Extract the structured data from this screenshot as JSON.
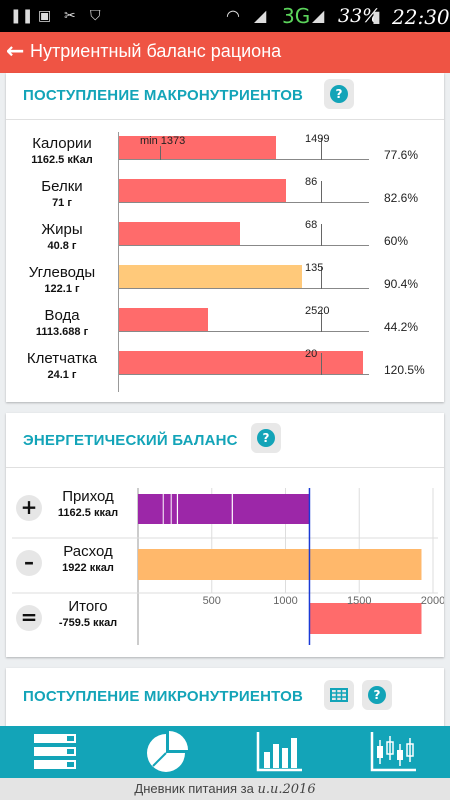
{
  "status_bar": {
    "network": "3G",
    "battery": "33%",
    "time": "22:30"
  },
  "app_bar": {
    "title": "Нутриентный баланс рациона"
  },
  "macro": {
    "title": "ПОСТУПЛЕНИЕ МАКРОНУТРИЕНТОВ",
    "help": "?",
    "rows": [
      {
        "name": "Калории",
        "value": "1162.5 кКал",
        "min_label": "min 1373",
        "norm": "1499",
        "percent": "77.6%",
        "fill": 0.776,
        "color": "#ff6b6b"
      },
      {
        "name": "Белки",
        "value": "71 г",
        "norm": "86",
        "percent": "82.6%",
        "fill": 0.826,
        "color": "#ff6b6b"
      },
      {
        "name": "Жиры",
        "value": "40.8 г",
        "norm": "68",
        "percent": "60%",
        "fill": 0.6,
        "color": "#ff6b6b"
      },
      {
        "name": "Углеводы",
        "value": "122.1 г",
        "norm": "135",
        "percent": "90.4%",
        "fill": 0.904,
        "color": "#ffc97a"
      },
      {
        "name": "Вода",
        "value": "1113.688 г",
        "norm": "2520",
        "percent": "44.2%",
        "fill": 0.442,
        "color": "#ff6b6b"
      },
      {
        "name": "Клетчатка",
        "value": "24.1 г",
        "norm": "20",
        "percent": "120.5%",
        "fill": 1.205,
        "color": "#ff6b6b"
      }
    ]
  },
  "energy": {
    "title": "ЭНЕРГЕТИЧЕСКИЙ БАЛАНС",
    "help": "?",
    "rows": [
      {
        "sign": "+",
        "name": "Приход",
        "value": "1162.5 ккал",
        "amount": 1162.5,
        "color": "#9c27a8",
        "segments": [
          1162.5
        ]
      },
      {
        "sign": "–",
        "name": "Расход",
        "value": "1922 ккал",
        "amount": 1922,
        "color": "#ffb86b",
        "segments": [
          1922
        ]
      },
      {
        "sign": "=",
        "name": "Итого",
        "value": "-759.5 ккал",
        "amount": -759.5,
        "color": "#ff6b6b",
        "segments": []
      }
    ],
    "axis": {
      "min": 0,
      "max": 2000,
      "ticks": [
        "500",
        "1000",
        "1500",
        "2000"
      ]
    }
  },
  "micro": {
    "title": "ПОСТУПЛЕНИЕ МИКРОНУТРИЕНТОВ",
    "help": "?",
    "table_icon": "table-icon"
  },
  "tabs": [
    {
      "name": "list-tab",
      "icon": "list-icon"
    },
    {
      "name": "pie-tab",
      "icon": "pie-chart-icon"
    },
    {
      "name": "bars-tab",
      "icon": "bar-chart-icon"
    },
    {
      "name": "candles-tab",
      "icon": "candlestick-icon"
    }
  ],
  "footer": {
    "label": "Дневник питания за",
    "date": "и.и.2016"
  }
}
